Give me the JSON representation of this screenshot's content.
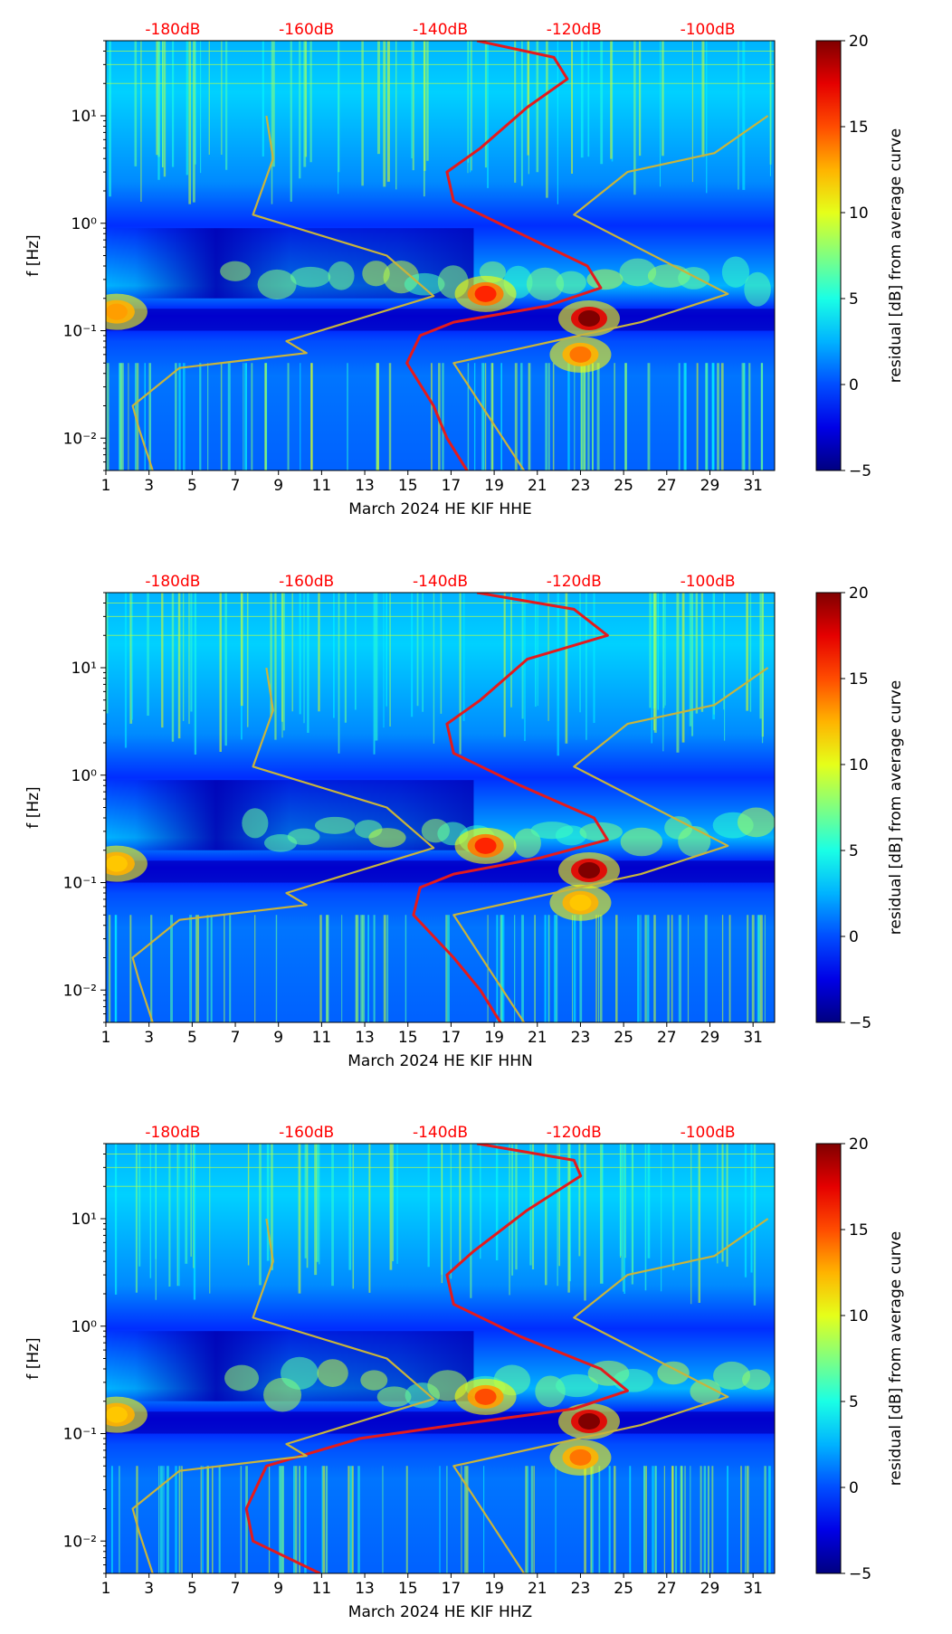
{
  "chart_data": [
    {
      "type": "heatmap",
      "xlabel": "March 2024 HE KIF  HHE",
      "ylabel": "f [Hz]",
      "x_ticks": [
        "1",
        "3",
        "5",
        "7",
        "9",
        "11",
        "13",
        "15",
        "17",
        "19",
        "21",
        "23",
        "25",
        "27",
        "29",
        "31"
      ],
      "x_range": [
        1,
        32
      ],
      "y_range_hz": [
        0.005,
        50
      ],
      "y_ticks": [
        {
          "label": "10⁻²",
          "value": 0.01
        },
        {
          "label": "10⁻¹",
          "value": 0.1
        },
        {
          "label": "10⁰",
          "value": 1
        },
        {
          "label": "10¹",
          "value": 10
        }
      ],
      "top_axis_labels": [
        "-180dB",
        "-160dB",
        "-140dB",
        "-120dB",
        "-100dB"
      ],
      "top_axis_color": "#ff0000",
      "colorbar": {
        "label": "residual [dB] from average curve",
        "min": -5,
        "max": 20,
        "ticks": [
          "−5",
          "0",
          "5",
          "10",
          "15",
          "20"
        ],
        "colormap": "jet"
      },
      "hotspots": [
        {
          "day": 23.4,
          "f": 0.13,
          "dB": 20
        },
        {
          "day": 18.6,
          "f": 0.22,
          "dB": 16
        },
        {
          "day": 23.0,
          "f": 0.06,
          "dB": 14
        },
        {
          "day": 1.5,
          "f": 0.15,
          "dB": 13
        }
      ],
      "curves": [
        {
          "name": "average noise",
          "color": "#e41a1c",
          "points": [
            [
              -134.5,
              50
            ],
            [
              -123,
              35
            ],
            [
              -121,
              22
            ],
            [
              -127,
              12
            ],
            [
              -134,
              5
            ],
            [
              -139,
              3
            ],
            [
              -138,
              1.6
            ],
            [
              -128,
              0.8
            ],
            [
              -118,
              0.4
            ],
            [
              -116,
              0.25
            ],
            [
              -124,
              0.17
            ],
            [
              -138,
              0.12
            ],
            [
              -143,
              0.09
            ],
            [
              -145,
              0.05
            ],
            [
              -141,
              0.02
            ],
            [
              -139,
              0.01
            ],
            [
              -136,
              0.005
            ]
          ]
        },
        {
          "name": "noise model low",
          "color": "#c8b43c",
          "points": [
            [
              -166,
              10
            ],
            [
              -165,
              4
            ],
            [
              -168,
              1.2
            ],
            [
              -148,
              0.5
            ],
            [
              -141,
              0.21
            ],
            [
              -163,
              0.08
            ],
            [
              -160,
              0.062
            ],
            [
              -179,
              0.045
            ],
            [
              -186,
              0.02
            ],
            [
              -185,
              0.012
            ],
            [
              -183,
              0.005
            ]
          ]
        },
        {
          "name": "noise model high",
          "color": "#c8b43c",
          "points": [
            [
              -91,
              10
            ],
            [
              -99,
              4.5
            ],
            [
              -112,
              3
            ],
            [
              -120,
              1.2
            ],
            [
              -97,
              0.22
            ],
            [
              -110,
              0.12
            ],
            [
              -123,
              0.08
            ],
            [
              -138,
              0.05
            ],
            [
              -127,
              0.0045
            ]
          ]
        }
      ]
    },
    {
      "type": "heatmap",
      "xlabel": "March 2024 HE KIF  HHN",
      "ylabel": "f [Hz]",
      "x_ticks": [
        "1",
        "3",
        "5",
        "7",
        "9",
        "11",
        "13",
        "15",
        "17",
        "19",
        "21",
        "23",
        "25",
        "27",
        "29",
        "31"
      ],
      "x_range": [
        1,
        32
      ],
      "y_range_hz": [
        0.005,
        50
      ],
      "y_ticks": [
        {
          "label": "10⁻²",
          "value": 0.01
        },
        {
          "label": "10⁻¹",
          "value": 0.1
        },
        {
          "label": "10⁰",
          "value": 1
        },
        {
          "label": "10¹",
          "value": 10
        }
      ],
      "top_axis_labels": [
        "-180dB",
        "-160dB",
        "-140dB",
        "-120dB",
        "-100dB"
      ],
      "top_axis_color": "#ff0000",
      "colorbar": {
        "label": "residual [dB] from average curve",
        "min": -5,
        "max": 20,
        "ticks": [
          "−5",
          "0",
          "5",
          "10",
          "15",
          "20"
        ],
        "colormap": "jet"
      },
      "hotspots": [
        {
          "day": 23.4,
          "f": 0.13,
          "dB": 20
        },
        {
          "day": 18.6,
          "f": 0.22,
          "dB": 16
        },
        {
          "day": 23.0,
          "f": 0.065,
          "dB": 12
        },
        {
          "day": 1.5,
          "f": 0.15,
          "dB": 12
        }
      ],
      "curves": [
        {
          "name": "average noise",
          "color": "#e41a1c",
          "points": [
            [
              -134.5,
              50
            ],
            [
              -120,
              35
            ],
            [
              -115,
              20
            ],
            [
              -127,
              12
            ],
            [
              -134,
              5
            ],
            [
              -139,
              3
            ],
            [
              -138,
              1.6
            ],
            [
              -128,
              0.8
            ],
            [
              -117,
              0.4
            ],
            [
              -115,
              0.25
            ],
            [
              -125,
              0.17
            ],
            [
              -138,
              0.12
            ],
            [
              -143,
              0.09
            ],
            [
              -144,
              0.05
            ],
            [
              -138,
              0.02
            ],
            [
              -134,
              0.01
            ],
            [
              -131,
              0.005
            ]
          ]
        },
        {
          "name": "noise model low",
          "color": "#c8b43c",
          "points": [
            [
              -166,
              10
            ],
            [
              -165,
              4
            ],
            [
              -168,
              1.2
            ],
            [
              -148,
              0.5
            ],
            [
              -141,
              0.21
            ],
            [
              -163,
              0.08
            ],
            [
              -160,
              0.062
            ],
            [
              -179,
              0.045
            ],
            [
              -186,
              0.02
            ],
            [
              -185,
              0.012
            ],
            [
              -183,
              0.005
            ]
          ]
        },
        {
          "name": "noise model high",
          "color": "#c8b43c",
          "points": [
            [
              -91,
              10
            ],
            [
              -99,
              4.5
            ],
            [
              -112,
              3
            ],
            [
              -120,
              1.2
            ],
            [
              -97,
              0.22
            ],
            [
              -110,
              0.12
            ],
            [
              -123,
              0.08
            ],
            [
              -138,
              0.05
            ],
            [
              -127,
              0.0045
            ]
          ]
        }
      ]
    },
    {
      "type": "heatmap",
      "xlabel": "March 2024 HE KIF  HHZ",
      "ylabel": "f [Hz]",
      "x_ticks": [
        "1",
        "3",
        "5",
        "7",
        "9",
        "11",
        "13",
        "15",
        "17",
        "19",
        "21",
        "23",
        "25",
        "27",
        "29",
        "31"
      ],
      "x_range": [
        1,
        32
      ],
      "y_range_hz": [
        0.005,
        50
      ],
      "y_ticks": [
        {
          "label": "10⁻²",
          "value": 0.01
        },
        {
          "label": "10⁻¹",
          "value": 0.1
        },
        {
          "label": "10⁰",
          "value": 1
        },
        {
          "label": "10¹",
          "value": 10
        }
      ],
      "top_axis_labels": [
        "-180dB",
        "-160dB",
        "-140dB",
        "-120dB",
        "-100dB"
      ],
      "top_axis_color": "#ff0000",
      "colorbar": {
        "label": "residual [dB] from average curve",
        "min": -5,
        "max": 20,
        "ticks": [
          "−5",
          "0",
          "5",
          "10",
          "15",
          "20"
        ],
        "colormap": "jet"
      },
      "hotspots": [
        {
          "day": 23.4,
          "f": 0.13,
          "dB": 20
        },
        {
          "day": 18.6,
          "f": 0.22,
          "dB": 15
        },
        {
          "day": 23.0,
          "f": 0.06,
          "dB": 14
        },
        {
          "day": 1.5,
          "f": 0.15,
          "dB": 12
        }
      ],
      "curves": [
        {
          "name": "average noise",
          "color": "#e41a1c",
          "points": [
            [
              -134.5,
              50
            ],
            [
              -120,
              35
            ],
            [
              -119,
              25
            ],
            [
              -127,
              12
            ],
            [
              -135,
              5
            ],
            [
              -139,
              3
            ],
            [
              -138,
              1.6
            ],
            [
              -128,
              0.8
            ],
            [
              -116,
              0.4
            ],
            [
              -112,
              0.25
            ],
            [
              -120,
              0.17
            ],
            [
              -138,
              0.12
            ],
            [
              -152,
              0.09
            ],
            [
              -166,
              0.05
            ],
            [
              -169,
              0.02
            ],
            [
              -168,
              0.01
            ],
            [
              -158,
              0.005
            ]
          ]
        },
        {
          "name": "noise model low",
          "color": "#c8b43c",
          "points": [
            [
              -166,
              10
            ],
            [
              -165,
              4
            ],
            [
              -168,
              1.2
            ],
            [
              -148,
              0.5
            ],
            [
              -141,
              0.21
            ],
            [
              -163,
              0.08
            ],
            [
              -160,
              0.062
            ],
            [
              -179,
              0.045
            ],
            [
              -186,
              0.02
            ],
            [
              -185,
              0.012
            ],
            [
              -183,
              0.005
            ]
          ]
        },
        {
          "name": "noise model high",
          "color": "#c8b43c",
          "points": [
            [
              -91,
              10
            ],
            [
              -99,
              4.5
            ],
            [
              -112,
              3
            ],
            [
              -120,
              1.2
            ],
            [
              -97,
              0.22
            ],
            [
              -110,
              0.12
            ],
            [
              -123,
              0.08
            ],
            [
              -138,
              0.05
            ],
            [
              -127,
              0.0045
            ]
          ]
        }
      ]
    }
  ]
}
